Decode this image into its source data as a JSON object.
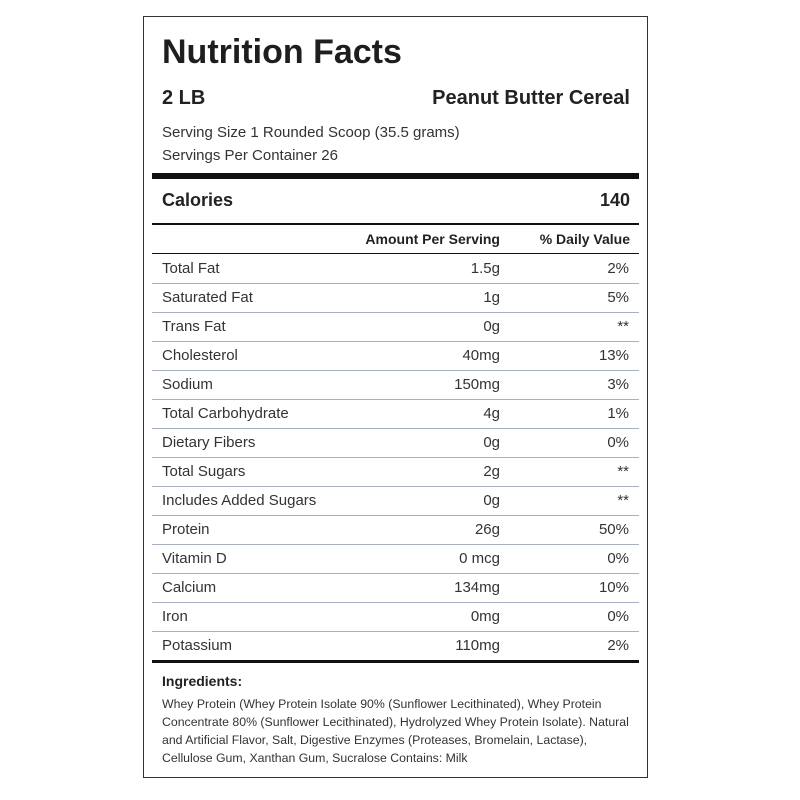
{
  "header": {
    "title": "Nutrition Facts",
    "size": "2 LB",
    "flavor": "Peanut Butter Cereal",
    "serving_size": "Serving Size 1 Rounded Scoop (35.5 grams)",
    "servings": "Servings Per Container 26"
  },
  "calories": {
    "label": "Calories",
    "value": "140"
  },
  "table": {
    "columns": [
      "Amount Per Serving",
      "% Daily Value"
    ],
    "rows": [
      [
        "Total Fat",
        "1.5g",
        "2%"
      ],
      [
        "Saturated Fat",
        "1g",
        "5%"
      ],
      [
        "Trans Fat",
        "0g",
        "**"
      ],
      [
        "Cholesterol",
        "40mg",
        "13%"
      ],
      [
        "Sodium",
        "150mg",
        "3%"
      ],
      [
        "Total Carbohydrate",
        "4g",
        "1%"
      ],
      [
        "Dietary Fibers",
        "0g",
        "0%"
      ],
      [
        "Total Sugars",
        "2g",
        "**"
      ],
      [
        "Includes Added Sugars",
        "0g",
        "**"
      ],
      [
        "Protein",
        "26g",
        "50%"
      ],
      [
        "Vitamin D",
        "0 mcg",
        "0%"
      ],
      [
        "Calcium",
        "134mg",
        "10%"
      ],
      [
        "Iron",
        "0mg",
        "0%"
      ],
      [
        "Potassium",
        "110mg",
        "2%"
      ]
    ]
  },
  "ingredients": {
    "heading": "Ingredients:",
    "text": "Whey Protein (Whey Protein Isolate 90% (Sunflower Lecithinated), Whey Protein Concentrate 80% (Sunflower Lecithinated), Hydrolyzed Whey Protein Isolate). Natural and Artificial Flavor, Salt, Digestive Enzymes (Proteases, Bromelain, Lactase), Cellulose Gum, Xanthan Gum, Sucralose Contains: Milk"
  }
}
